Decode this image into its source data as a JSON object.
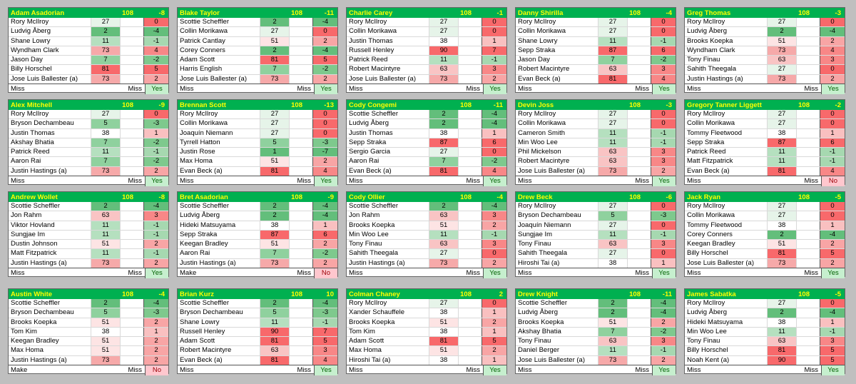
{
  "par": "108",
  "colors": {
    "header_bg": "#00b050",
    "header_text": "#ffff00"
  },
  "cards": [
    {
      "name": "Adam Asadorian",
      "score": "-8",
      "rows": [
        [
          "Rory McIlroy",
          "27",
          "0"
        ],
        [
          "Ludvig Åberg",
          "2",
          "-4"
        ],
        [
          "Shane Lowry",
          "11",
          "-1"
        ],
        [
          "Wyndham Clark",
          "73",
          "4"
        ],
        [
          "Jason Day",
          "7",
          "-2"
        ],
        [
          "Billy Horschel",
          "81",
          "5"
        ],
        [
          "Jose Luis Ballester (a)",
          "73",
          "2"
        ]
      ],
      "foot": [
        "Miss",
        "Miss",
        "Yes"
      ]
    },
    {
      "name": "Blake Taylor",
      "score": "-11",
      "rows": [
        [
          "Scottie Scheffler",
          "2",
          "-4"
        ],
        [
          "Collin Morikawa",
          "27",
          "0"
        ],
        [
          "Patrick Cantlay",
          "51",
          "2"
        ],
        [
          "Corey Conners",
          "2",
          "-4"
        ],
        [
          "Adam Scott",
          "81",
          "5"
        ],
        [
          "Harris English",
          "7",
          "-2"
        ],
        [
          "Jose Luis Ballester (a)",
          "73",
          "2"
        ]
      ],
      "foot": [
        "Miss",
        "Miss",
        "Yes"
      ]
    },
    {
      "name": "Charlie Carey",
      "score": "-1",
      "rows": [
        [
          "Rory McIlroy",
          "27",
          "0"
        ],
        [
          "Collin Morikawa",
          "27",
          "0"
        ],
        [
          "Justin Thomas",
          "38",
          "1"
        ],
        [
          "Russell Henley",
          "90",
          "7"
        ],
        [
          "Patrick Reed",
          "11",
          "-1"
        ],
        [
          "Robert Macintyre",
          "63",
          "3"
        ],
        [
          "Jose Luis Ballester (a)",
          "73",
          "2"
        ]
      ],
      "foot": [
        "Miss",
        "Miss",
        "Yes"
      ]
    },
    {
      "name": "Danny Shirilla",
      "score": "-4",
      "rows": [
        [
          "Rory McIlroy",
          "27",
          "0"
        ],
        [
          "Collin Morikawa",
          "27",
          "0"
        ],
        [
          "Shane Lowry",
          "11",
          "-1"
        ],
        [
          "Sepp Straka",
          "87",
          "6"
        ],
        [
          "Jason Day",
          "7",
          "-2"
        ],
        [
          "Robert Macintyre",
          "63",
          "3"
        ],
        [
          "Evan Beck (a)",
          "81",
          "4"
        ]
      ],
      "foot": [
        "Miss",
        "Miss",
        "Yes"
      ]
    },
    {
      "name": "Greg Thomas",
      "score": "-3",
      "rows": [
        [
          "Rory McIlroy",
          "27",
          "0"
        ],
        [
          "Ludvig Åberg",
          "2",
          "-4"
        ],
        [
          "Brooks Koepka",
          "51",
          "2"
        ],
        [
          "Wyndham Clark",
          "73",
          "4"
        ],
        [
          "Tony Finau",
          "63",
          "3"
        ],
        [
          "Sahith Theegala",
          "27",
          "0"
        ],
        [
          "Justin Hastings (a)",
          "73",
          "2"
        ]
      ],
      "foot": [
        "Miss",
        "Miss",
        "Yes"
      ]
    },
    {
      "name": "Alex Mitchell",
      "score": "-9",
      "rows": [
        [
          "Rory McIlroy",
          "27",
          "0"
        ],
        [
          "Bryson Dechambeau",
          "5",
          "-3"
        ],
        [
          "Justin Thomas",
          "38",
          "1"
        ],
        [
          "Akshay Bhatia",
          "7",
          "-2"
        ],
        [
          "Patrick Reed",
          "11",
          "-1"
        ],
        [
          "Aaron Rai",
          "7",
          "-2"
        ],
        [
          "Justin Hastings (a)",
          "73",
          "2"
        ]
      ],
      "foot": [
        "Miss",
        "Miss",
        "Yes"
      ]
    },
    {
      "name": "Brennan Scott",
      "score": "-13",
      "rows": [
        [
          "Rory McIlroy",
          "27",
          "0"
        ],
        [
          "Collin Morikawa",
          "27",
          "0"
        ],
        [
          "Joaquín Niemann",
          "27",
          "0"
        ],
        [
          "Tyrrell Hatton",
          "5",
          "-3"
        ],
        [
          "Justin Rose",
          "1",
          "-7"
        ],
        [
          "Max Homa",
          "51",
          "2"
        ],
        [
          "Evan Beck (a)",
          "81",
          "4"
        ]
      ],
      "foot": [
        "Miss",
        "Miss",
        "Yes"
      ]
    },
    {
      "name": "Cody Congemi",
      "score": "-11",
      "rows": [
        [
          "Scottie Scheffler",
          "2",
          "-4"
        ],
        [
          "Ludvig Åberg",
          "2",
          "-4"
        ],
        [
          "Justin Thomas",
          "38",
          "1"
        ],
        [
          "Sepp Straka",
          "87",
          "6"
        ],
        [
          "Sergio Garcia",
          "27",
          "0"
        ],
        [
          "Aaron Rai",
          "7",
          "-2"
        ],
        [
          "Evan Beck (a)",
          "81",
          "4"
        ]
      ],
      "foot": [
        "Miss",
        "Miss",
        "Yes"
      ]
    },
    {
      "name": "Devin Joss",
      "score": "-3",
      "rows": [
        [
          "Rory McIlroy",
          "27",
          "0"
        ],
        [
          "Collin Morikawa",
          "27",
          "0"
        ],
        [
          "Cameron Smith",
          "11",
          "-1"
        ],
        [
          "Min Woo Lee",
          "11",
          "-1"
        ],
        [
          "Phil Mickelson",
          "63",
          "3"
        ],
        [
          "Robert Macintyre",
          "63",
          "3"
        ],
        [
          "Jose Luis Ballester (a)",
          "73",
          "2"
        ]
      ],
      "foot": [
        "Miss",
        "Miss",
        "Yes"
      ]
    },
    {
      "name": "Gregory Tanner Liggett",
      "score": "-2",
      "rows": [
        [
          "Rory McIlroy",
          "27",
          "0"
        ],
        [
          "Collin Morikawa",
          "27",
          "0"
        ],
        [
          "Tommy Fleetwood",
          "38",
          "1"
        ],
        [
          "Sepp Straka",
          "87",
          "6"
        ],
        [
          "Patrick Reed",
          "11",
          "-1"
        ],
        [
          "Matt Fitzpatrick",
          "11",
          "-1"
        ],
        [
          "Evan Beck (a)",
          "81",
          "4"
        ]
      ],
      "foot": [
        "Miss",
        "Miss",
        "No"
      ]
    },
    {
      "name": "Andrew Wollet",
      "score": "-8",
      "rows": [
        [
          "Scottie Scheffler",
          "2",
          "-4"
        ],
        [
          "Jon Rahm",
          "63",
          "3"
        ],
        [
          "Viktor Hovland",
          "11",
          "-1"
        ],
        [
          "Sungjae Im",
          "11",
          "-1"
        ],
        [
          "Dustin Johnson",
          "51",
          "2"
        ],
        [
          "Matt Fitzpatrick",
          "11",
          "-1"
        ],
        [
          "Justin Hastings (a)",
          "73",
          "2"
        ]
      ],
      "foot": [
        "Miss",
        "Miss",
        "Yes"
      ]
    },
    {
      "name": "Bret Asadorian",
      "score": "-9",
      "rows": [
        [
          "Scottie Scheffler",
          "2",
          "-4"
        ],
        [
          "Ludvig Åberg",
          "2",
          "-4"
        ],
        [
          "Hideki Matsuyama",
          "38",
          "1"
        ],
        [
          "Sepp Straka",
          "87",
          "6"
        ],
        [
          "Keegan Bradley",
          "51",
          "2"
        ],
        [
          "Aaron Rai",
          "7",
          "-2"
        ],
        [
          "Justin Hastings (a)",
          "73",
          "2"
        ]
      ],
      "foot": [
        "Make",
        "Miss",
        "No"
      ]
    },
    {
      "name": "Cody Ollier",
      "score": "-4",
      "rows": [
        [
          "Scottie Scheffler",
          "2",
          "-4"
        ],
        [
          "Jon Rahm",
          "63",
          "3"
        ],
        [
          "Brooks Koepka",
          "51",
          "2"
        ],
        [
          "Min Woo Lee",
          "11",
          "-1"
        ],
        [
          "Tony Finau",
          "63",
          "3"
        ],
        [
          "Sahith Theegala",
          "27",
          "0"
        ],
        [
          "Justin Hastings (a)",
          "73",
          "2"
        ]
      ],
      "foot": [
        "Miss",
        "Miss",
        "Yes"
      ]
    },
    {
      "name": "Drew Beck",
      "score": "-6",
      "rows": [
        [
          "Rory McIlroy",
          "27",
          "0"
        ],
        [
          "Bryson Dechambeau",
          "5",
          "-3"
        ],
        [
          "Joaquín Niemann",
          "27",
          "0"
        ],
        [
          "Sungjae Im",
          "11",
          "-1"
        ],
        [
          "Tony Finau",
          "63",
          "3"
        ],
        [
          "Sahith Theegala",
          "27",
          "0"
        ],
        [
          "Hiroshi Tai (a)",
          "38",
          "1"
        ]
      ],
      "foot": [
        "Miss",
        "Miss",
        "Yes"
      ]
    },
    {
      "name": "Jack Ryan",
      "score": "-5",
      "rows": [
        [
          "Rory McIlroy",
          "27",
          "0"
        ],
        [
          "Collin Morikawa",
          "27",
          "0"
        ],
        [
          "Tommy Fleetwood",
          "38",
          "1"
        ],
        [
          "Corey Conners",
          "2",
          "-4"
        ],
        [
          "Keegan Bradley",
          "51",
          "2"
        ],
        [
          "Billy Horschel",
          "81",
          "5"
        ],
        [
          "Jose Luis Ballester (a)",
          "73",
          "2"
        ]
      ],
      "foot": [
        "Miss",
        "Miss",
        "Yes"
      ]
    },
    {
      "name": "Austin White",
      "score": "-4",
      "rows": [
        [
          "Scottie Scheffler",
          "2",
          "-4"
        ],
        [
          "Bryson Dechambeau",
          "5",
          "-3"
        ],
        [
          "Brooks Koepka",
          "51",
          "2"
        ],
        [
          "Tom Kim",
          "38",
          "1"
        ],
        [
          "Keegan Bradley",
          "51",
          "2"
        ],
        [
          "Max Homa",
          "51",
          "2"
        ],
        [
          "Justin Hastings (a)",
          "73",
          "2"
        ]
      ],
      "foot": [
        "Make",
        "Miss",
        "No"
      ]
    },
    {
      "name": "Brian Kurz",
      "score": "10",
      "rows": [
        [
          "Scottie Scheffler",
          "2",
          "-4"
        ],
        [
          "Bryson Dechambeau",
          "5",
          "-3"
        ],
        [
          "Shane Lowry",
          "11",
          "-1"
        ],
        [
          "Russell Henley",
          "90",
          "7"
        ],
        [
          "Adam Scott",
          "81",
          "5"
        ],
        [
          "Robert Macintyre",
          "63",
          "3"
        ],
        [
          "Evan Beck (a)",
          "81",
          "4"
        ]
      ],
      "foot": [
        "Miss",
        "Miss",
        "Yes"
      ]
    },
    {
      "name": "Colman Chaney",
      "score": "2",
      "rows": [
        [
          "Rory McIlroy",
          "27",
          "0"
        ],
        [
          "Xander Schauffele",
          "38",
          "1"
        ],
        [
          "Brooks Koepka",
          "51",
          "2"
        ],
        [
          "Tom Kim",
          "38",
          "1"
        ],
        [
          "Adam Scott",
          "81",
          "5"
        ],
        [
          "Max Homa",
          "51",
          "2"
        ],
        [
          "Hiroshi Tai (a)",
          "38",
          "1"
        ]
      ],
      "foot": [
        "Miss",
        "Miss",
        "Yes"
      ]
    },
    {
      "name": "Drew Knight",
      "score": "-11",
      "rows": [
        [
          "Scottie Scheffler",
          "2",
          "-4"
        ],
        [
          "Ludvig Åberg",
          "2",
          "-4"
        ],
        [
          "Brooks Koepka",
          "51",
          "2"
        ],
        [
          "Akshay Bhatia",
          "7",
          "-2"
        ],
        [
          "Tony Finau",
          "63",
          "3"
        ],
        [
          "Daniel Berger",
          "11",
          "-1"
        ],
        [
          "Jose Luis Ballester (a)",
          "73",
          "2"
        ]
      ],
      "foot": [
        "Miss",
        "Miss",
        "Yes"
      ]
    },
    {
      "name": "James Sabatka",
      "score": "-5",
      "rows": [
        [
          "Rory McIlroy",
          "27",
          "0"
        ],
        [
          "Ludvig Åberg",
          "2",
          "-4"
        ],
        [
          "Hideki Matsuyama",
          "38",
          "1"
        ],
        [
          "Min Woo Lee",
          "11",
          "-1"
        ],
        [
          "Tony Finau",
          "63",
          "3"
        ],
        [
          "Billy Horschel",
          "81",
          "5"
        ],
        [
          "Noah Kent (a)",
          "90",
          "5"
        ]
      ],
      "foot": [
        "Miss",
        "Miss",
        "Yes"
      ]
    }
  ]
}
